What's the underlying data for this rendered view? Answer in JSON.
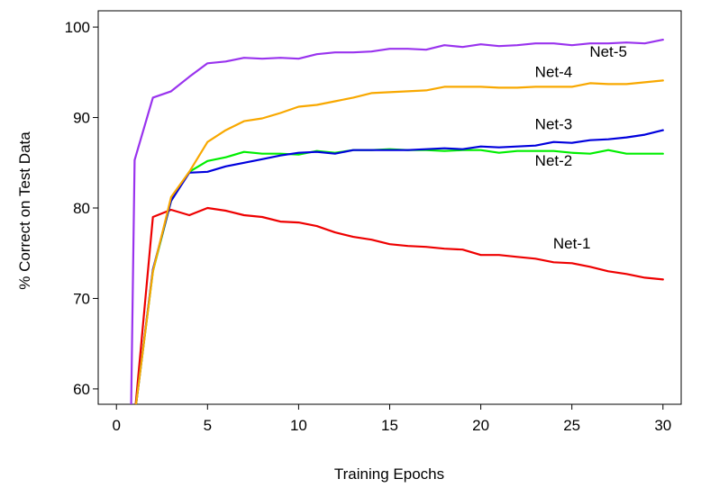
{
  "chart_data": {
    "type": "line",
    "title": "",
    "xlabel": "Training Epochs",
    "ylabel": "% Correct on Test Data",
    "xlim": [
      -1,
      31
    ],
    "ylim": [
      58.3,
      101.8
    ],
    "xticks": [
      0,
      5,
      10,
      15,
      20,
      25,
      30
    ],
    "yticks": [
      60,
      70,
      80,
      90,
      100
    ],
    "grid": false,
    "legend": "none",
    "series": [
      {
        "name": "Net-1",
        "color": "#ee0000",
        "label_at": [
          25,
          75.5
        ],
        "x": [
          1,
          2,
          3,
          4,
          5,
          6,
          7,
          8,
          9,
          10,
          11,
          12,
          13,
          14,
          15,
          16,
          17,
          18,
          19,
          20,
          21,
          22,
          23,
          24,
          25,
          26,
          27,
          28,
          29,
          30
        ],
        "values": [
          57,
          79.0,
          79.8,
          79.2,
          80.0,
          79.7,
          79.2,
          79.0,
          78.5,
          78.4,
          78.0,
          77.3,
          76.8,
          76.5,
          76.0,
          75.8,
          75.7,
          75.5,
          75.4,
          74.8,
          74.8,
          74.6,
          74.4,
          74.0,
          73.9,
          73.5,
          73.0,
          72.7,
          72.3,
          72.1
        ]
      },
      {
        "name": "Net-2",
        "color": "#00ee00",
        "label_at": [
          24,
          84.7
        ],
        "x": [
          1,
          2,
          3,
          4,
          5,
          6,
          7,
          8,
          9,
          10,
          11,
          12,
          13,
          14,
          15,
          16,
          17,
          18,
          19,
          20,
          21,
          22,
          23,
          24,
          25,
          26,
          27,
          28,
          29,
          30
        ],
        "values": [
          57,
          73.0,
          80.8,
          84.0,
          85.2,
          85.6,
          86.2,
          86.0,
          86.0,
          85.9,
          86.3,
          86.1,
          86.4,
          86.4,
          86.5,
          86.4,
          86.4,
          86.3,
          86.4,
          86.4,
          86.1,
          86.3,
          86.3,
          86.3,
          86.1,
          86.0,
          86.4,
          86.0,
          86.0,
          86.0
        ]
      },
      {
        "name": "Net-3",
        "color": "#0000dd",
        "label_at": [
          24,
          88.7
        ],
        "x": [
          1,
          2,
          3,
          4,
          5,
          6,
          7,
          8,
          9,
          10,
          11,
          12,
          13,
          14,
          15,
          16,
          17,
          18,
          19,
          20,
          21,
          22,
          23,
          24,
          25,
          26,
          27,
          28,
          29,
          30
        ],
        "values": [
          57,
          73.2,
          80.8,
          83.9,
          84.0,
          84.6,
          85.0,
          85.4,
          85.8,
          86.1,
          86.2,
          86.0,
          86.4,
          86.4,
          86.4,
          86.4,
          86.5,
          86.6,
          86.5,
          86.8,
          86.7,
          86.8,
          86.9,
          87.3,
          87.2,
          87.5,
          87.6,
          87.8,
          88.1,
          88.6
        ]
      },
      {
        "name": "Net-4",
        "color": "#f8a800",
        "label_at": [
          24,
          94.5
        ],
        "x": [
          1,
          2,
          3,
          4,
          5,
          6,
          7,
          8,
          9,
          10,
          11,
          12,
          13,
          14,
          15,
          16,
          17,
          18,
          19,
          20,
          21,
          22,
          23,
          24,
          25,
          26,
          27,
          28,
          29,
          30
        ],
        "values": [
          57,
          73.0,
          81.2,
          84.0,
          87.3,
          88.6,
          89.6,
          89.9,
          90.5,
          91.2,
          91.4,
          91.8,
          92.2,
          92.7,
          92.8,
          92.9,
          93.0,
          93.4,
          93.4,
          93.4,
          93.3,
          93.3,
          93.4,
          93.4,
          93.4,
          93.8,
          93.7,
          93.7,
          93.9,
          94.1
        ]
      },
      {
        "name": "Net-5",
        "color": "#9933ee",
        "label_at": [
          27,
          96.7
        ],
        "x": [
          0.8,
          1,
          2,
          3,
          4,
          5,
          6,
          7,
          8,
          9,
          10,
          11,
          12,
          13,
          14,
          15,
          16,
          17,
          18,
          19,
          20,
          21,
          22,
          23,
          24,
          25,
          26,
          27,
          28,
          29,
          30
        ],
        "values": [
          57,
          85.3,
          92.2,
          92.9,
          94.5,
          96.0,
          96.2,
          96.6,
          96.5,
          96.6,
          96.5,
          97.0,
          97.2,
          97.2,
          97.3,
          97.6,
          97.6,
          97.5,
          98.0,
          97.8,
          98.1,
          97.9,
          98.0,
          98.2,
          98.2,
          98.0,
          98.2,
          98.2,
          98.3,
          98.2,
          98.6
        ]
      }
    ]
  }
}
